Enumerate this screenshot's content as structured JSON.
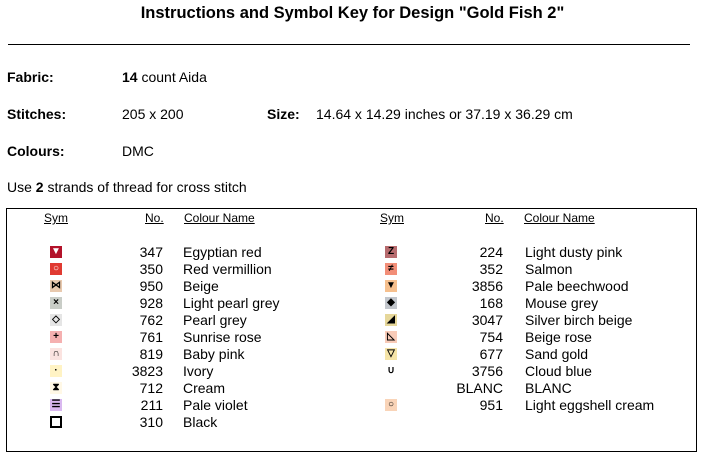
{
  "title": "Instructions and Symbol Key for Design \"Gold Fish 2\"",
  "fabric": {
    "label": "Fabric:",
    "count": "14",
    "rest": " count Aida"
  },
  "stitches": {
    "label": "Stitches:",
    "value": "205 x 200"
  },
  "size": {
    "label": "Size:",
    "value": "14.64 x 14.29 inches or 37.19 x 36.29 cm"
  },
  "colours": {
    "label": "Colours:",
    "value": "DMC"
  },
  "note": {
    "pre": "Use ",
    "count": "2",
    "post": " strands of thread for cross stitch"
  },
  "headers": {
    "sym": "Sym",
    "no": "No.",
    "name": "Colour Name"
  },
  "left_rows": [
    {
      "no": "347",
      "name": "Egyptian red",
      "color": "#b3122a",
      "glyph": "▼",
      "gcolor": "#ffffff"
    },
    {
      "no": "350",
      "name": "Red vermillion",
      "color": "#e03a32",
      "glyph": "○",
      "gcolor": "#ffffff"
    },
    {
      "no": "950",
      "name": "Beige",
      "color": "#e8c9ae",
      "glyph": "⋈",
      "gcolor": "#000000"
    },
    {
      "no": "928",
      "name": "Light pearl grey",
      "color": "#c9cdc7",
      "glyph": "×",
      "gcolor": "#000000"
    },
    {
      "no": "762",
      "name": "Pearl grey",
      "color": "#e5e5e5",
      "glyph": "◇",
      "gcolor": "#000000"
    },
    {
      "no": "761",
      "name": "Sunrise rose",
      "color": "#f5b0b0",
      "glyph": "+",
      "gcolor": "#000000"
    },
    {
      "no": "819",
      "name": "Baby pink",
      "color": "#fbe3e0",
      "glyph": "∩",
      "gcolor": "#000000"
    },
    {
      "no": "3823",
      "name": "Ivory",
      "color": "#fff3c4",
      "glyph": "·",
      "gcolor": "#000000"
    },
    {
      "no": "712",
      "name": "Cream",
      "color": "#fff8e6",
      "glyph": "⧗",
      "gcolor": "#000000"
    },
    {
      "no": "211",
      "name": "Pale violet",
      "color": "#d9b8f0",
      "glyph": "☰",
      "gcolor": "#000000"
    },
    {
      "no": "310",
      "name": "Black",
      "color": "#ffffff",
      "glyph": "",
      "gcolor": "#000000",
      "outline": true
    }
  ],
  "right_rows": [
    {
      "no": "224",
      "name": "Light dusty pink",
      "color": "#b76b6e",
      "glyph": "Z",
      "gcolor": "#000000"
    },
    {
      "no": "352",
      "name": "Salmon",
      "color": "#f28e78",
      "glyph": "≠",
      "gcolor": "#000000"
    },
    {
      "no": "3856",
      "name": "Pale beechwood",
      "color": "#f6c08e",
      "glyph": "▼",
      "gcolor": "#000000"
    },
    {
      "no": "168",
      "name": "Mouse grey",
      "color": "#c2c6cc",
      "glyph": "◆",
      "gcolor": "#000000"
    },
    {
      "no": "3047",
      "name": "Silver birch beige",
      "color": "#e6d79a",
      "glyph": "◢",
      "gcolor": "#000000"
    },
    {
      "no": "754",
      "name": "Beige rose",
      "color": "#f8cbb8",
      "glyph": "◺",
      "gcolor": "#000000"
    },
    {
      "no": "677",
      "name": "Sand gold",
      "color": "#f5e4a8",
      "glyph": "▽",
      "gcolor": "#000000"
    },
    {
      "no": "3756",
      "name": "Cloud blue",
      "color": "#ffffff",
      "glyph": "∪",
      "gcolor": "#000000"
    },
    {
      "no": "BLANC",
      "name": "BLANC",
      "color": "",
      "glyph": "",
      "gcolor": "#000000"
    },
    {
      "no": "951",
      "name": "Light eggshell cream",
      "color": "#f9d4b8",
      "glyph": "○",
      "gcolor": "#000000"
    }
  ]
}
